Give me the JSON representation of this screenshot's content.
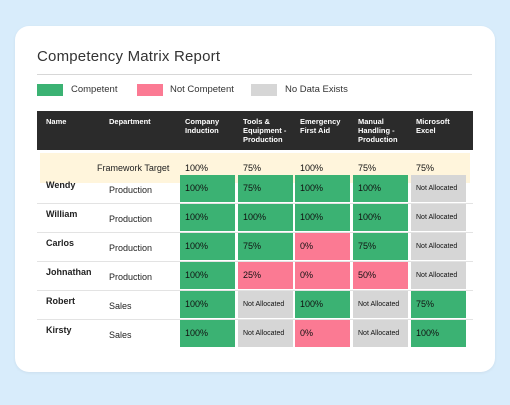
{
  "report": {
    "title": "Competency Matrix Report"
  },
  "colors": {
    "competent": "#3bb273",
    "not_competent": "#fb7a93",
    "no_data": "#d6d6d6"
  },
  "legend": [
    {
      "label": "Competent",
      "color": "#3bb273"
    },
    {
      "label": "Not Competent",
      "color": "#fb7a93"
    },
    {
      "label": "No Data Exists",
      "color": "#d6d6d6"
    }
  ],
  "table": {
    "headers": {
      "name": "Name",
      "department": "Department",
      "competencies": [
        [
          "Company",
          "Induction"
        ],
        [
          "Tools &",
          "Equipment -",
          "Production"
        ],
        [
          "Emergency",
          "First Aid"
        ],
        [
          "Manual",
          "Handling -",
          "Production"
        ],
        [
          "Microsoft",
          "Excel"
        ]
      ]
    },
    "framework_target": {
      "label": "Framework Target",
      "values": [
        "100%",
        "75%",
        "100%",
        "75%",
        "75%"
      ]
    },
    "rows": [
      {
        "name": "Wendy",
        "department": "Production",
        "cells": [
          {
            "value": "100%",
            "status": "competent"
          },
          {
            "value": "75%",
            "status": "competent"
          },
          {
            "value": "100%",
            "status": "competent"
          },
          {
            "value": "100%",
            "status": "competent"
          },
          {
            "value": "Not Allocated",
            "status": "no_data"
          }
        ]
      },
      {
        "name": "William",
        "department": "Production",
        "cells": [
          {
            "value": "100%",
            "status": "competent"
          },
          {
            "value": "100%",
            "status": "competent"
          },
          {
            "value": "100%",
            "status": "competent"
          },
          {
            "value": "100%",
            "status": "competent"
          },
          {
            "value": "Not Allocated",
            "status": "no_data"
          }
        ]
      },
      {
        "name": "Carlos",
        "department": "Production",
        "cells": [
          {
            "value": "100%",
            "status": "competent"
          },
          {
            "value": "75%",
            "status": "competent"
          },
          {
            "value": "0%",
            "status": "not_competent"
          },
          {
            "value": "75%",
            "status": "competent"
          },
          {
            "value": "Not Allocated",
            "status": "no_data"
          }
        ]
      },
      {
        "name": "Johnathan",
        "department": "Production",
        "cells": [
          {
            "value": "100%",
            "status": "competent"
          },
          {
            "value": "25%",
            "status": "not_competent"
          },
          {
            "value": "0%",
            "status": "not_competent"
          },
          {
            "value": "50%",
            "status": "not_competent"
          },
          {
            "value": "Not Allocated",
            "status": "no_data"
          }
        ]
      },
      {
        "name": "Robert",
        "department": "Sales",
        "cells": [
          {
            "value": "100%",
            "status": "competent"
          },
          {
            "value": "Not Allocated",
            "status": "no_data"
          },
          {
            "value": "100%",
            "status": "competent"
          },
          {
            "value": "Not Allocated",
            "status": "no_data"
          },
          {
            "value": "75%",
            "status": "competent"
          }
        ]
      },
      {
        "name": "Kirsty",
        "department": "Sales",
        "cells": [
          {
            "value": "100%",
            "status": "competent"
          },
          {
            "value": "Not Allocated",
            "status": "no_data"
          },
          {
            "value": "0%",
            "status": "not_competent"
          },
          {
            "value": "Not Allocated",
            "status": "no_data"
          },
          {
            "value": "100%",
            "status": "competent"
          }
        ]
      }
    ]
  }
}
